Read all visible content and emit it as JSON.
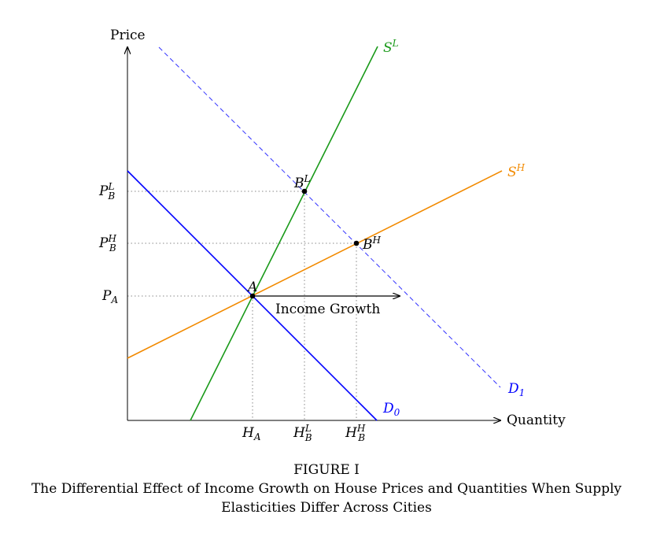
{
  "axes": {
    "y_label": "Price",
    "x_label": "Quantity"
  },
  "curves": {
    "supply_low": {
      "name": "S",
      "sup": "L",
      "color": "#1a9a1a"
    },
    "supply_high": {
      "name": "S",
      "sup": "H",
      "color": "#f28a00"
    },
    "demand_0": {
      "name": "D",
      "sub": "0",
      "color": "#0000ff"
    },
    "demand_1": {
      "name": "D",
      "sub": "1",
      "color": "#0000ff"
    }
  },
  "points": {
    "A": {
      "name": "A"
    },
    "BL": {
      "name": "B",
      "sup": "L"
    },
    "BH": {
      "name": "B",
      "sup": "H"
    }
  },
  "price_ticks": {
    "PBL": {
      "name": "P",
      "sub": "B",
      "sup": "L"
    },
    "PBH": {
      "name": "P",
      "sub": "B",
      "sup": "H"
    },
    "PA": {
      "name": "P",
      "sub": "A"
    }
  },
  "quantity_ticks": {
    "HA": {
      "name": "H",
      "sub": "A"
    },
    "HBL": {
      "name": "H",
      "sub": "B",
      "sup": "L"
    },
    "HBH": {
      "name": "H",
      "sub": "B",
      "sup": "H"
    }
  },
  "arrow_label": "Income Growth",
  "caption": {
    "figure": "FIGURE I",
    "line1": "The Differential Effect of Income Growth on House Prices and Quantities When Supply",
    "line2": "Elasticities Differ Across Cities"
  }
}
